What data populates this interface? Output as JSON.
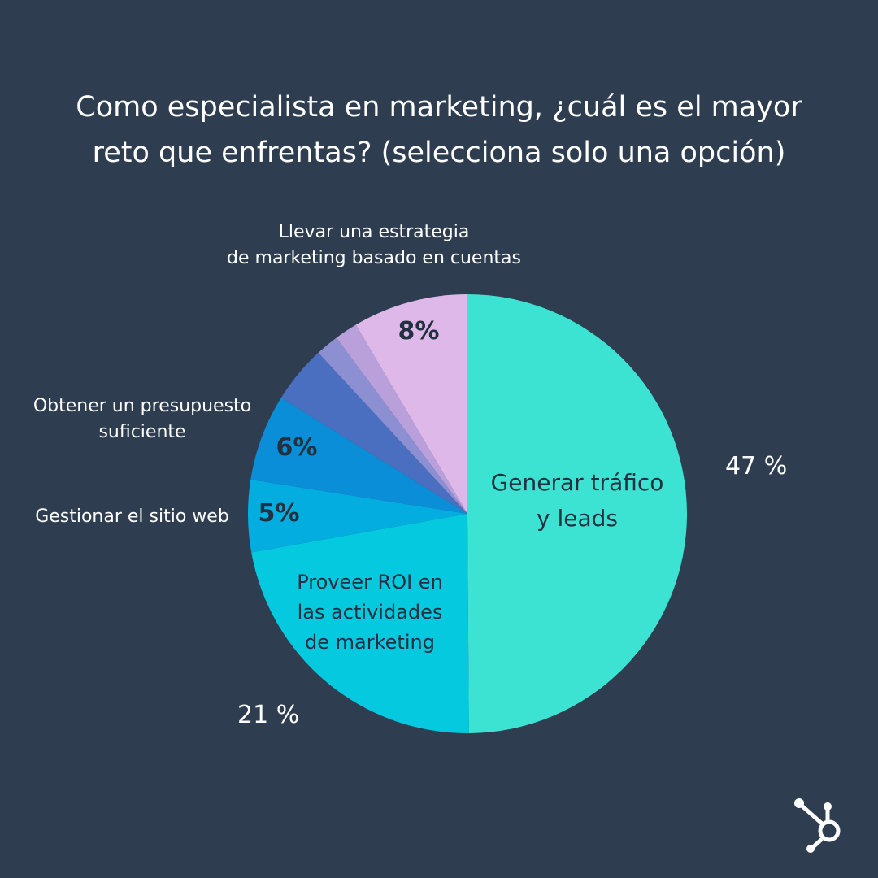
{
  "chart_data": {
    "type": "pie",
    "title_line1": "Como especialista en marketing, ¿cuál es el mayor",
    "title_line2": "reto que enfrentas? (selecciona solo una opción)",
    "slices": [
      {
        "label": "Generar tráfico y leads",
        "label_lines": [
          "Generar tráfico",
          "y leads"
        ],
        "value": 47,
        "value_label": "47 %",
        "color": "#3de3d2"
      },
      {
        "label": "Proveer ROI en las actividades de marketing",
        "label_lines": [
          "Proveer ROI en",
          "las actividades",
          "de marketing"
        ],
        "value": 21,
        "value_label": "21 %",
        "color": "#05c9df"
      },
      {
        "label": "Gestionar el sitio web",
        "value": 5,
        "value_label": "5%",
        "color": "#04ade0"
      },
      {
        "label": "Obtener un presupuesto suficiente",
        "label_lines": [
          "Obtener un presupuesto",
          "suficiente"
        ],
        "value": 6,
        "value_label": "6%",
        "color": "#0b8ed8"
      },
      {
        "label": "",
        "value": 4,
        "color": "#4a6fc0"
      },
      {
        "label": "",
        "value": 1.6,
        "color": "#8d8fd3"
      },
      {
        "label": "",
        "value": 1.6,
        "color": "#b9a0db"
      },
      {
        "label": "Llevar una estrategia de marketing basado en cuentas",
        "label_lines": [
          "Llevar una estrategia",
          "de marketing basado en cuentas"
        ],
        "value": 8,
        "value_label": "8%",
        "color": "#ddb8e8"
      }
    ],
    "start_angle": "top",
    "direction": "clockwise"
  },
  "background": "#2e3e50",
  "brand_icon": "hubspot-sprocket-icon"
}
